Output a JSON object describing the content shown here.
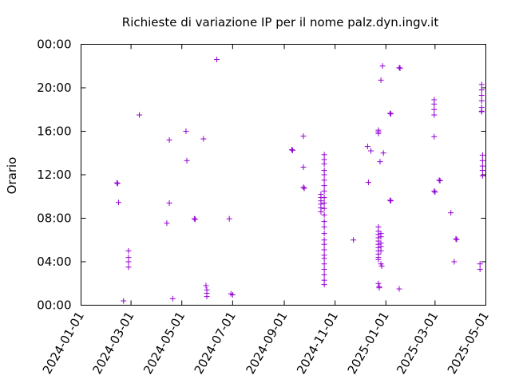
{
  "chart_data": {
    "type": "scatter",
    "title": "Richieste di variazione IP per il nome palz.dyn.ingv.it",
    "xlabel": "",
    "ylabel": "Orario",
    "x_type": "date",
    "xlim": [
      "2024-01-01",
      "2025-05-01"
    ],
    "ylim_hours": [
      0,
      24
    ],
    "x_ticks": [
      "2024-01-01",
      "2024-03-01",
      "2024-05-01",
      "2024-07-01",
      "2024-09-01",
      "2024-11-01",
      "2025-01-01",
      "2025-03-01",
      "2025-05-01"
    ],
    "y_ticks": [
      "00:00",
      "04:00",
      "08:00",
      "12:00",
      "16:00",
      "20:00",
      "00:00"
    ],
    "marker": "+",
    "color": "#9400d3",
    "grid": false,
    "series": [
      {
        "points": [
          [
            "2024-02-13",
            11.25
          ],
          [
            "2024-02-14",
            11.2
          ],
          [
            "2024-02-15",
            9.45
          ],
          [
            "2024-02-21",
            0.4
          ],
          [
            "2024-02-27",
            5.0
          ],
          [
            "2024-02-27",
            4.4
          ],
          [
            "2024-02-27",
            4.0
          ],
          [
            "2024-02-27",
            3.5
          ],
          [
            "2024-03-11",
            17.5
          ],
          [
            "2024-04-13",
            7.55
          ],
          [
            "2024-04-16",
            15.2
          ],
          [
            "2024-04-16",
            9.4
          ],
          [
            "2024-04-20",
            0.6
          ],
          [
            "2024-05-06",
            16.0
          ],
          [
            "2024-05-07",
            13.3
          ],
          [
            "2024-05-16",
            7.95
          ],
          [
            "2024-05-17",
            7.9
          ],
          [
            "2024-05-27",
            15.3
          ],
          [
            "2024-05-30",
            1.8
          ],
          [
            "2024-05-31",
            1.4
          ],
          [
            "2024-05-31",
            1.1
          ],
          [
            "2024-05-31",
            0.8
          ],
          [
            "2024-06-12",
            22.6
          ],
          [
            "2024-06-27",
            7.95
          ],
          [
            "2024-06-29",
            1.05
          ],
          [
            "2024-07-01",
            0.95
          ],
          [
            "2024-09-10",
            14.3
          ],
          [
            "2024-09-11",
            14.25
          ],
          [
            "2024-09-24",
            15.55
          ],
          [
            "2024-09-24",
            12.7
          ],
          [
            "2024-09-24",
            10.85
          ],
          [
            "2024-09-25",
            10.75
          ],
          [
            "2024-10-15",
            10.2
          ],
          [
            "2024-10-15",
            9.9
          ],
          [
            "2024-10-15",
            9.6
          ],
          [
            "2024-10-15",
            9.3
          ],
          [
            "2024-10-15",
            8.95
          ],
          [
            "2024-10-15",
            8.6
          ],
          [
            "2024-10-19",
            13.85
          ],
          [
            "2024-10-19",
            13.4
          ],
          [
            "2024-10-19",
            13.0
          ],
          [
            "2024-10-19",
            12.4
          ],
          [
            "2024-10-19",
            12.0
          ],
          [
            "2024-10-19",
            11.5
          ],
          [
            "2024-10-19",
            11.0
          ],
          [
            "2024-10-19",
            10.5
          ],
          [
            "2024-10-19",
            9.9
          ],
          [
            "2024-10-19",
            9.4
          ],
          [
            "2024-10-19",
            8.9
          ],
          [
            "2024-10-19",
            8.3
          ],
          [
            "2024-10-19",
            7.7
          ],
          [
            "2024-10-19",
            7.2
          ],
          [
            "2024-10-19",
            6.6
          ],
          [
            "2024-10-19",
            6.0
          ],
          [
            "2024-10-19",
            5.6
          ],
          [
            "2024-10-19",
            5.1
          ],
          [
            "2024-10-19",
            4.6
          ],
          [
            "2024-10-19",
            4.3
          ],
          [
            "2024-10-19",
            3.8
          ],
          [
            "2024-10-19",
            3.3
          ],
          [
            "2024-10-19",
            2.8
          ],
          [
            "2024-10-19",
            2.3
          ],
          [
            "2024-10-19",
            1.9
          ],
          [
            "2024-11-23",
            6.0
          ],
          [
            "2024-12-10",
            14.6
          ],
          [
            "2024-12-11",
            11.3
          ],
          [
            "2024-12-14",
            14.2
          ],
          [
            "2024-12-23",
            16.1
          ],
          [
            "2024-12-23",
            15.95
          ],
          [
            "2024-12-23",
            15.8
          ],
          [
            "2024-12-23",
            7.2
          ],
          [
            "2024-12-23",
            6.8
          ],
          [
            "2024-12-23",
            6.5
          ],
          [
            "2024-12-23",
            6.2
          ],
          [
            "2024-12-23",
            5.9
          ],
          [
            "2024-12-23",
            5.6
          ],
          [
            "2024-12-23",
            5.3
          ],
          [
            "2024-12-23",
            5.0
          ],
          [
            "2024-12-23",
            4.7
          ],
          [
            "2024-12-23",
            4.4
          ],
          [
            "2024-12-23",
            4.2
          ],
          [
            "2024-12-23",
            2.0
          ],
          [
            "2024-12-24",
            1.7
          ],
          [
            "2024-12-24",
            1.6
          ],
          [
            "2024-12-25",
            13.2
          ],
          [
            "2024-12-26",
            20.7
          ],
          [
            "2024-12-26",
            6.6
          ],
          [
            "2024-12-26",
            6.3
          ],
          [
            "2024-12-26",
            5.7
          ],
          [
            "2024-12-26",
            5.4
          ],
          [
            "2024-12-26",
            5.0
          ],
          [
            "2024-12-26",
            3.8
          ],
          [
            "2024-12-27",
            3.6
          ],
          [
            "2024-12-28",
            22.0
          ],
          [
            "2024-12-29",
            14.0
          ],
          [
            "2025-01-06",
            17.65
          ],
          [
            "2025-01-07",
            17.6
          ],
          [
            "2025-01-06",
            9.65
          ],
          [
            "2025-01-07",
            9.6
          ],
          [
            "2025-01-17",
            21.85
          ],
          [
            "2025-01-18",
            21.8
          ],
          [
            "2025-01-17",
            1.5
          ],
          [
            "2025-02-28",
            18.9
          ],
          [
            "2025-02-28",
            18.5
          ],
          [
            "2025-02-28",
            18.0
          ],
          [
            "2025-02-28",
            17.5
          ],
          [
            "2025-02-28",
            15.5
          ],
          [
            "2025-02-28",
            10.5
          ],
          [
            "2025-03-01",
            10.4
          ],
          [
            "2025-03-06",
            11.5
          ],
          [
            "2025-03-07",
            11.45
          ],
          [
            "2025-03-20",
            8.5
          ],
          [
            "2025-03-24",
            4.0
          ],
          [
            "2025-03-26",
            6.1
          ],
          [
            "2025-03-27",
            6.05
          ],
          [
            "2025-04-24",
            3.8
          ],
          [
            "2025-04-24",
            3.3
          ],
          [
            "2025-04-26",
            20.3
          ],
          [
            "2025-04-26",
            19.8
          ],
          [
            "2025-04-26",
            19.3
          ],
          [
            "2025-04-26",
            18.8
          ],
          [
            "2025-04-26",
            18.2
          ],
          [
            "2025-04-26",
            17.85
          ],
          [
            "2025-04-26",
            17.8
          ],
          [
            "2025-04-27",
            13.8
          ],
          [
            "2025-04-27",
            13.3
          ],
          [
            "2025-04-27",
            12.8
          ],
          [
            "2025-04-27",
            12.4
          ],
          [
            "2025-04-27",
            11.9
          ]
        ]
      }
    ]
  }
}
